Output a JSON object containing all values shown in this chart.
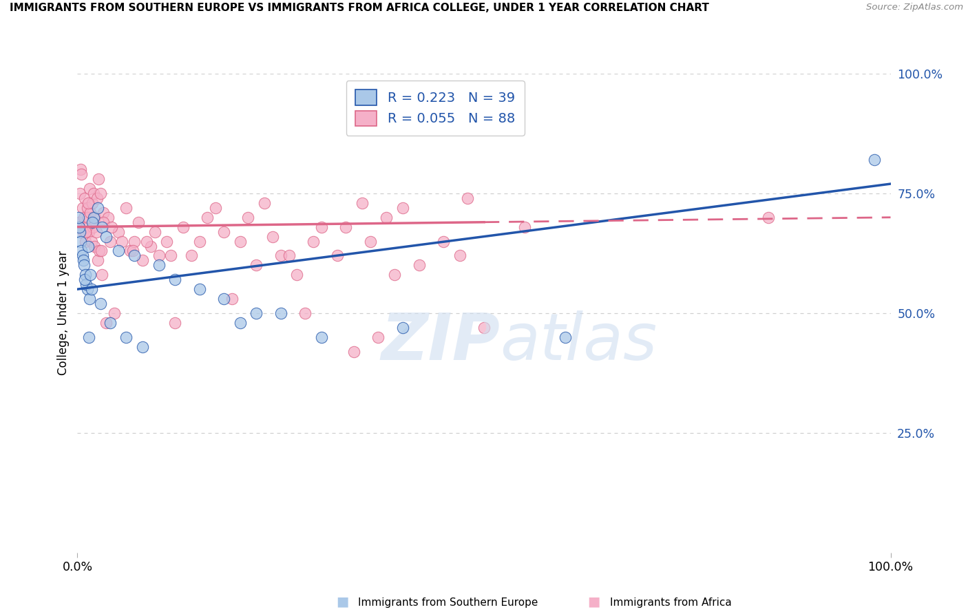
{
  "title": "IMMIGRANTS FROM SOUTHERN EUROPE VS IMMIGRANTS FROM AFRICA COLLEGE, UNDER 1 YEAR CORRELATION CHART",
  "source": "Source: ZipAtlas.com",
  "xlabel_blue": "Immigrants from Southern Europe",
  "xlabel_pink": "Immigrants from Africa",
  "ylabel": "College, Under 1 year",
  "blue_R": 0.223,
  "blue_N": 39,
  "pink_R": 0.055,
  "pink_N": 88,
  "blue_dot_color": "#aac8e8",
  "pink_dot_color": "#f5b0c8",
  "blue_line_color": "#2255aa",
  "pink_line_color": "#dd6688",
  "grid_color": "#d0d0d0",
  "background": "#ffffff",
  "blue_scatter_x": [
    0.3,
    0.4,
    0.5,
    0.6,
    0.7,
    0.8,
    1.0,
    1.2,
    1.5,
    2.0,
    2.5,
    3.0,
    3.5,
    5.0,
    7.0,
    10.0,
    12.0,
    15.0,
    18.0,
    22.0,
    1.8,
    1.3,
    1.1,
    0.9,
    2.8,
    4.0,
    6.0,
    8.0,
    20.0,
    30.0,
    40.0,
    60.0,
    98.0,
    0.2,
    0.1,
    1.6,
    1.7,
    1.4,
    25.0
  ],
  "blue_scatter_y": [
    67,
    65,
    63,
    62,
    61,
    60,
    58,
    55,
    53,
    70,
    72,
    68,
    66,
    63,
    62,
    60,
    57,
    55,
    53,
    50,
    69,
    64,
    56,
    57,
    52,
    48,
    45,
    43,
    48,
    45,
    47,
    45,
    82,
    68,
    70,
    58,
    55,
    45,
    50
  ],
  "pink_scatter_x": [
    0.1,
    0.2,
    0.3,
    0.4,
    0.5,
    0.6,
    0.7,
    0.8,
    0.9,
    1.0,
    1.1,
    1.2,
    1.3,
    1.4,
    1.5,
    1.6,
    1.7,
    1.8,
    1.9,
    2.0,
    2.1,
    2.2,
    2.3,
    2.4,
    2.5,
    2.6,
    2.7,
    2.8,
    3.0,
    3.2,
    3.5,
    3.8,
    4.0,
    4.5,
    5.0,
    5.5,
    6.0,
    6.5,
    7.0,
    7.5,
    8.0,
    9.0,
    10.0,
    11.0,
    12.0,
    13.0,
    14.0,
    15.0,
    16.0,
    17.0,
    18.0,
    19.0,
    20.0,
    21.0,
    22.0,
    23.0,
    24.0,
    25.0,
    27.0,
    28.0,
    30.0,
    33.0,
    34.0,
    35.0,
    37.0,
    38.0,
    40.0,
    45.0,
    48.0,
    50.0,
    3.2,
    2.9,
    1.35,
    0.95,
    6.8,
    4.2,
    8.5,
    9.5,
    11.5,
    26.0,
    29.0,
    32.0,
    36.0,
    39.0,
    42.0,
    47.0,
    55.0,
    85.0
  ],
  "pink_scatter_y": [
    68,
    69,
    75,
    80,
    79,
    72,
    67,
    70,
    74,
    65,
    68,
    72,
    70,
    67,
    76,
    71,
    65,
    73,
    68,
    75,
    64,
    70,
    67,
    74,
    61,
    78,
    63,
    75,
    58,
    71,
    48,
    70,
    65,
    50,
    67,
    65,
    72,
    63,
    65,
    69,
    61,
    64,
    62,
    65,
    48,
    68,
    62,
    65,
    70,
    72,
    67,
    53,
    65,
    70,
    60,
    73,
    66,
    62,
    58,
    50,
    68,
    68,
    42,
    73,
    45,
    70,
    72,
    65,
    74,
    47,
    69,
    63,
    73,
    67,
    63,
    68,
    65,
    67,
    62,
    62,
    65,
    62,
    65,
    58,
    60,
    62,
    68,
    70
  ],
  "blue_line_y_at_0": 55,
  "blue_line_y_at_100": 77,
  "pink_line_y_at_0": 68,
  "pink_line_y_at_100": 70,
  "pink_solid_end": 50,
  "xlim": [
    0,
    100
  ],
  "ylim": [
    0,
    100
  ],
  "ytick_vals": [
    25,
    50,
    75,
    100
  ],
  "ytick_labels": [
    "25.0%",
    "50.0%",
    "75.0%",
    "100.0%"
  ],
  "xtick_vals": [
    0,
    100
  ],
  "xtick_labels": [
    "0.0%",
    "100.0%"
  ]
}
